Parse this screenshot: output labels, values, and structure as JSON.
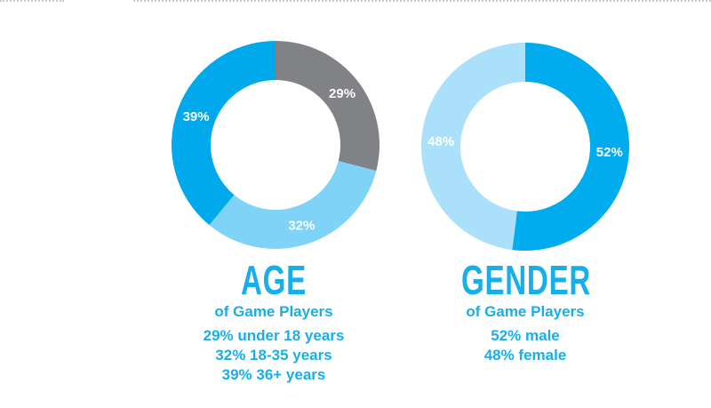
{
  "chart_data": [
    {
      "type": "pie",
      "title": "AGE",
      "subtitle": "of Game Players",
      "categories": [
        "under 18 years",
        "18-35 years",
        "36+ years"
      ],
      "values": [
        29,
        32,
        39
      ],
      "slice_labels": [
        "29%",
        "32%",
        "39%"
      ],
      "colors": [
        "#808285",
        "#7fd3f7",
        "#00a9ec"
      ],
      "legend": [
        "29% under 18 years",
        "32% 18-35 years",
        "39% 36+ years"
      ],
      "legend_placement": "bottom"
    },
    {
      "type": "pie",
      "title": "GENDER",
      "subtitle": "of Game Players",
      "categories": [
        "male",
        "female"
      ],
      "values": [
        52,
        48
      ],
      "slice_labels": [
        "52%",
        "48%"
      ],
      "colors": [
        "#00aced",
        "#abe0fa"
      ],
      "legend": [
        "52% male",
        "48% female"
      ],
      "legend_placement": "bottom"
    }
  ]
}
